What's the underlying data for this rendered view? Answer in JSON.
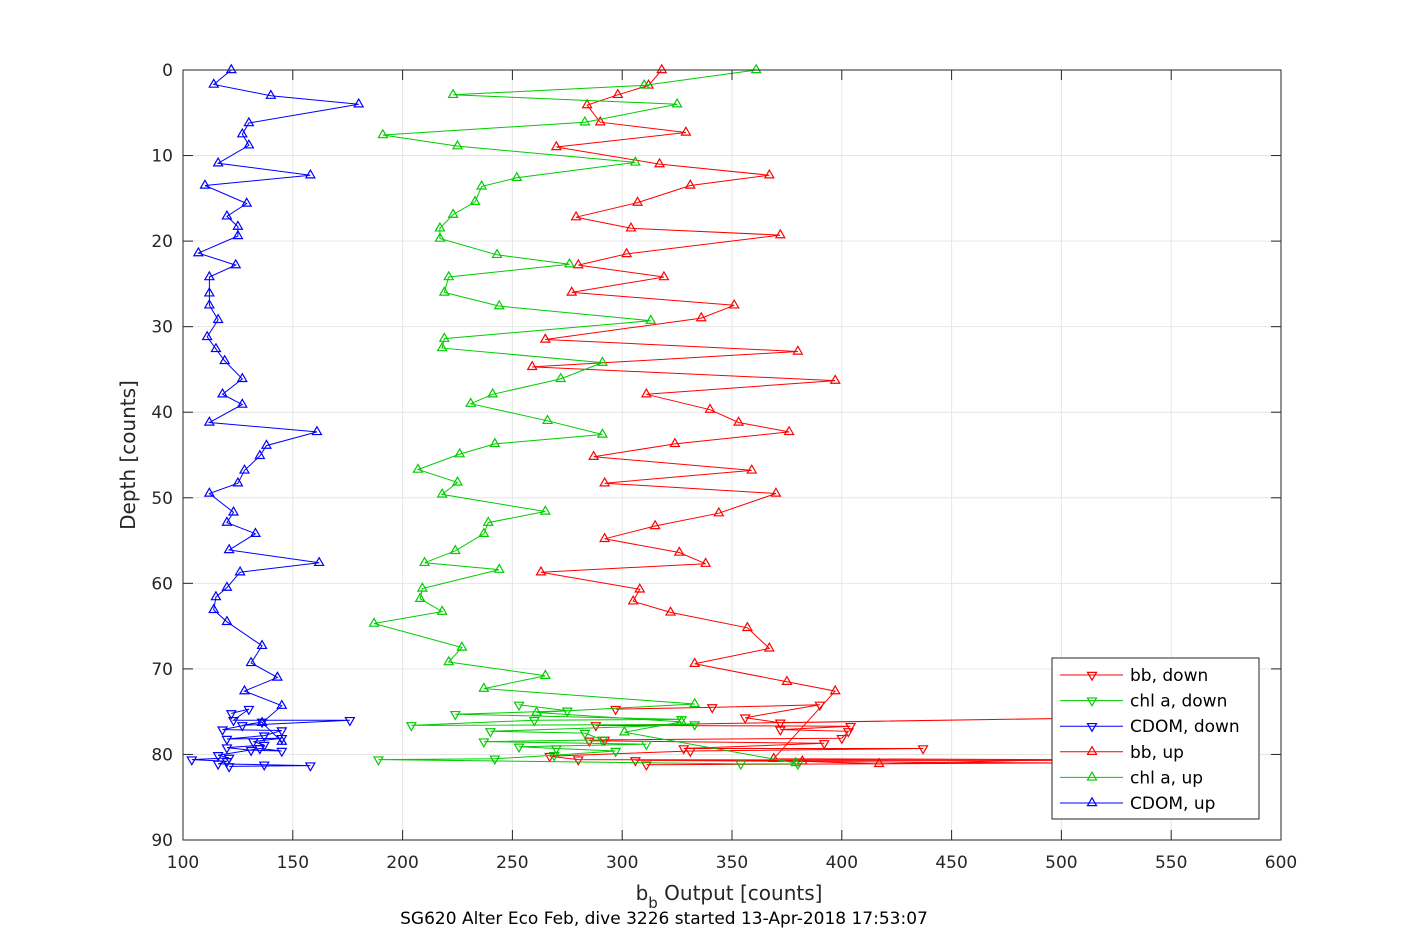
{
  "figure": {
    "footer": "SG620 Alter Eco Feb, dive 3226 started 13-Apr-2018 17:53:07"
  },
  "chart_data": {
    "type": "line",
    "xlabel_main": "b",
    "xlabel_sub": "b",
    "xlabel_rest": " Output [counts]",
    "ylabel": "Depth [counts]",
    "xlim": [
      100,
      600
    ],
    "ylim": [
      0,
      90
    ],
    "y_reversed": true,
    "grid": true,
    "legend_position": "bottom-right",
    "x_ticks": [
      100,
      150,
      200,
      250,
      300,
      350,
      400,
      450,
      500,
      550,
      600
    ],
    "y_ticks": [
      0,
      10,
      20,
      30,
      40,
      50,
      60,
      70,
      80,
      90
    ],
    "series": [
      {
        "name": "bb, down",
        "color": "#ff0000",
        "marker": "triangle-down",
        "points": [
          [
            297,
            74.7
          ],
          [
            341,
            74.5
          ],
          [
            390,
            74.2
          ],
          [
            356,
            75.7
          ],
          [
            372,
            76.3
          ],
          [
            500,
            75.8
          ],
          [
            288,
            76.6
          ],
          [
            404,
            76.7
          ],
          [
            372,
            77.1
          ],
          [
            403,
            77.3
          ],
          [
            400,
            78.1
          ],
          [
            292,
            78.3
          ],
          [
            285,
            78.4
          ],
          [
            392,
            78.7
          ],
          [
            328,
            79.3
          ],
          [
            437,
            79.3
          ],
          [
            331,
            79.6
          ],
          [
            267,
            80.2
          ],
          [
            280,
            80.6
          ],
          [
            500,
            80.7
          ],
          [
            306,
            80.7
          ],
          [
            500,
            81.0
          ],
          [
            311,
            81.2
          ]
        ]
      },
      {
        "name": "chl a, down",
        "color": "#00cc00",
        "marker": "triangle-down",
        "points": [
          [
            253,
            74.2
          ],
          [
            275,
            74.9
          ],
          [
            224,
            75.3
          ],
          [
            327,
            75.9
          ],
          [
            260,
            76.0
          ],
          [
            204,
            76.6
          ],
          [
            333,
            76.5
          ],
          [
            240,
            77.3
          ],
          [
            283,
            77.5
          ],
          [
            291,
            78.3
          ],
          [
            237,
            78.5
          ],
          [
            311,
            78.8
          ],
          [
            253,
            79.1
          ],
          [
            270,
            79.3
          ],
          [
            297,
            79.6
          ],
          [
            269,
            80.1
          ],
          [
            242,
            80.5
          ],
          [
            189,
            80.6
          ],
          [
            354,
            81.1
          ],
          [
            380,
            81.1
          ]
        ]
      },
      {
        "name": "CDOM, down",
        "color": "#0000ff",
        "marker": "triangle-down",
        "points": [
          [
            122,
            75.2
          ],
          [
            130,
            74.7
          ],
          [
            123,
            76.0
          ],
          [
            176,
            76.0
          ],
          [
            127,
            76.6
          ],
          [
            136,
            76.2
          ],
          [
            118,
            77.1
          ],
          [
            145,
            77.2
          ],
          [
            137,
            77.8
          ],
          [
            120,
            78.2
          ],
          [
            145,
            78.1
          ],
          [
            132,
            78.5
          ],
          [
            137,
            78.9
          ],
          [
            120,
            79.2
          ],
          [
            131,
            79.5
          ],
          [
            145,
            79.6
          ],
          [
            135,
            79.3
          ],
          [
            116,
            80.1
          ],
          [
            121,
            80.4
          ],
          [
            104,
            80.6
          ],
          [
            120,
            80.8
          ],
          [
            116,
            81.1
          ],
          [
            137,
            81.2
          ],
          [
            158,
            81.3
          ],
          [
            121,
            81.4
          ]
        ]
      },
      {
        "name": "bb, up",
        "color": "#ff0000",
        "marker": "triangle-up",
        "points": [
          [
            318,
            0
          ],
          [
            312,
            1.8
          ],
          [
            298,
            2.9
          ],
          [
            284,
            4.1
          ],
          [
            290,
            6.1
          ],
          [
            329,
            7.3
          ],
          [
            270,
            9.0
          ],
          [
            317,
            11.0
          ],
          [
            367,
            12.3
          ],
          [
            331,
            13.5
          ],
          [
            307,
            15.5
          ],
          [
            279,
            17.2
          ],
          [
            304,
            18.5
          ],
          [
            372,
            19.3
          ],
          [
            302,
            21.5
          ],
          [
            280,
            22.8
          ],
          [
            319,
            24.2
          ],
          [
            277,
            26.0
          ],
          [
            351,
            27.5
          ],
          [
            336,
            29.0
          ],
          [
            265,
            31.5
          ],
          [
            380,
            32.9
          ],
          [
            259,
            34.7
          ],
          [
            397,
            36.3
          ],
          [
            311,
            37.9
          ],
          [
            340,
            39.7
          ],
          [
            353,
            41.2
          ],
          [
            376,
            42.3
          ],
          [
            324,
            43.7
          ],
          [
            287,
            45.2
          ],
          [
            359,
            46.8
          ],
          [
            292,
            48.3
          ],
          [
            370,
            49.5
          ],
          [
            344,
            51.8
          ],
          [
            315,
            53.3
          ],
          [
            292,
            54.8
          ],
          [
            326,
            56.4
          ],
          [
            338,
            57.7
          ],
          [
            263,
            58.7
          ],
          [
            308,
            60.7
          ],
          [
            305,
            62.1
          ],
          [
            322,
            63.4
          ],
          [
            357,
            65.2
          ],
          [
            367,
            67.6
          ],
          [
            333,
            69.4
          ],
          [
            375,
            71.5
          ],
          [
            397,
            72.6
          ],
          [
            369,
            80.5
          ],
          [
            500,
            80.6
          ],
          [
            417,
            81.1
          ],
          [
            382,
            80.8
          ]
        ]
      },
      {
        "name": "chl a, up",
        "color": "#00cc00",
        "marker": "triangle-up",
        "points": [
          [
            361,
            0
          ],
          [
            310,
            1.8
          ],
          [
            223,
            2.9
          ],
          [
            325,
            4.0
          ],
          [
            283,
            6.1
          ],
          [
            191,
            7.6
          ],
          [
            225,
            8.9
          ],
          [
            306,
            10.8
          ],
          [
            252,
            12.6
          ],
          [
            236,
            13.6
          ],
          [
            233,
            15.4
          ],
          [
            223,
            16.9
          ],
          [
            217,
            18.5
          ],
          [
            217,
            19.7
          ],
          [
            243,
            21.6
          ],
          [
            276,
            22.7
          ],
          [
            221,
            24.2
          ],
          [
            219,
            26.0
          ],
          [
            244,
            27.6
          ],
          [
            313,
            29.3
          ],
          [
            219,
            31.4
          ],
          [
            218,
            32.5
          ],
          [
            291,
            34.2
          ],
          [
            272,
            36.1
          ],
          [
            241,
            37.9
          ],
          [
            231,
            39.0
          ],
          [
            266,
            41.0
          ],
          [
            291,
            42.6
          ],
          [
            242,
            43.7
          ],
          [
            226,
            44.9
          ],
          [
            207,
            46.7
          ],
          [
            225,
            48.2
          ],
          [
            218,
            49.6
          ],
          [
            265,
            51.6
          ],
          [
            239,
            52.9
          ],
          [
            237,
            54.2
          ],
          [
            224,
            56.2
          ],
          [
            210,
            57.6
          ],
          [
            244,
            58.4
          ],
          [
            209,
            60.6
          ],
          [
            208,
            61.8
          ],
          [
            218,
            63.3
          ],
          [
            187,
            64.7
          ],
          [
            227,
            67.5
          ],
          [
            221,
            69.2
          ],
          [
            265,
            70.8
          ],
          [
            237,
            72.3
          ],
          [
            333,
            74.1
          ],
          [
            261,
            75.1
          ],
          [
            327,
            76.2
          ],
          [
            301,
            77.4
          ],
          [
            379,
            81.0
          ]
        ]
      },
      {
        "name": "CDOM, up",
        "color": "#0000ff",
        "marker": "triangle-up",
        "points": [
          [
            122,
            0
          ],
          [
            114,
            1.7
          ],
          [
            140,
            3.0
          ],
          [
            180,
            4.0
          ],
          [
            130,
            6.2
          ],
          [
            127,
            7.5
          ],
          [
            130,
            8.8
          ],
          [
            116,
            10.9
          ],
          [
            158,
            12.3
          ],
          [
            110,
            13.5
          ],
          [
            129,
            15.6
          ],
          [
            120,
            17.1
          ],
          [
            125,
            18.3
          ],
          [
            125,
            19.4
          ],
          [
            107,
            21.4
          ],
          [
            124,
            22.8
          ],
          [
            112,
            24.2
          ],
          [
            112,
            26.1
          ],
          [
            112,
            27.5
          ],
          [
            116,
            29.2
          ],
          [
            111,
            31.2
          ],
          [
            115,
            32.6
          ],
          [
            119,
            34.0
          ],
          [
            127,
            36.1
          ],
          [
            118,
            37.9
          ],
          [
            127,
            39.1
          ],
          [
            112,
            41.2
          ],
          [
            161,
            42.3
          ],
          [
            138,
            43.9
          ],
          [
            135,
            45.1
          ],
          [
            128,
            46.8
          ],
          [
            125,
            48.3
          ],
          [
            112,
            49.5
          ],
          [
            123,
            51.7
          ],
          [
            120,
            52.9
          ],
          [
            133,
            54.2
          ],
          [
            121,
            56.1
          ],
          [
            162,
            57.6
          ],
          [
            126,
            58.7
          ],
          [
            120,
            60.5
          ],
          [
            115,
            61.6
          ],
          [
            114,
            63.1
          ],
          [
            120,
            64.5
          ],
          [
            136,
            67.3
          ],
          [
            131,
            69.3
          ],
          [
            143,
            71.0
          ],
          [
            128,
            72.6
          ],
          [
            145,
            74.3
          ],
          [
            136,
            76.3
          ],
          [
            145,
            78.5
          ]
        ]
      }
    ]
  }
}
